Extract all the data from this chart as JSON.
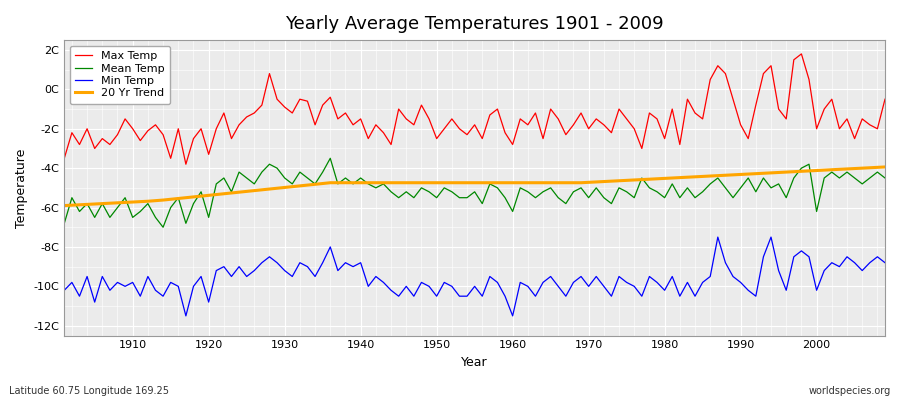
{
  "title": "Yearly Average Temperatures 1901 - 2009",
  "xlabel": "Year",
  "ylabel": "Temperature",
  "footnote_left": "Latitude 60.75 Longitude 169.25",
  "footnote_right": "worldspecies.org",
  "year_start": 1901,
  "year_end": 2009,
  "ylim": [
    -12.5,
    2.5
  ],
  "yticks": [
    -12,
    -10,
    -8,
    -6,
    -4,
    -2,
    0,
    2
  ],
  "ytick_labels": [
    "-12C",
    "-10C",
    "-8C",
    "-6C",
    "-4C",
    "-2C",
    "0C",
    "2C"
  ],
  "bg_color": "#ffffff",
  "plot_bg_color": "#ebebeb",
  "grid_color": "#ffffff",
  "line_colors": {
    "max": "#ff0000",
    "mean": "#008800",
    "min": "#0000ff",
    "trend": "#ffa500"
  },
  "legend_labels": [
    "Max Temp",
    "Mean Temp",
    "Min Temp",
    "20 Yr Trend"
  ],
  "max_temp": [
    -3.5,
    -2.2,
    -2.8,
    -2.0,
    -3.0,
    -2.5,
    -2.8,
    -2.3,
    -1.5,
    -2.0,
    -2.6,
    -2.1,
    -1.8,
    -2.3,
    -3.5,
    -2.0,
    -3.8,
    -2.5,
    -2.0,
    -3.3,
    -2.0,
    -1.2,
    -2.5,
    -1.8,
    -1.4,
    -1.2,
    -0.8,
    0.8,
    -0.5,
    -0.9,
    -1.2,
    -0.5,
    -0.6,
    -1.8,
    -0.8,
    -0.4,
    -1.5,
    -1.2,
    -1.8,
    -1.5,
    -2.5,
    -1.8,
    -2.2,
    -2.8,
    -1.0,
    -1.5,
    -1.8,
    -0.8,
    -1.5,
    -2.5,
    -2.0,
    -1.5,
    -2.0,
    -2.3,
    -1.8,
    -2.5,
    -1.3,
    -1.0,
    -2.2,
    -2.8,
    -1.5,
    -1.8,
    -1.2,
    -2.5,
    -1.0,
    -1.5,
    -2.3,
    -1.8,
    -1.2,
    -2.0,
    -1.5,
    -1.8,
    -2.2,
    -1.0,
    -1.5,
    -2.0,
    -3.0,
    -1.2,
    -1.5,
    -2.5,
    -1.0,
    -2.8,
    -0.5,
    -1.2,
    -1.5,
    0.5,
    1.2,
    0.8,
    -0.5,
    -1.8,
    -2.5,
    -0.8,
    0.8,
    1.2,
    -1.0,
    -1.5,
    1.5,
    1.8,
    0.5,
    -2.0,
    -1.0,
    -0.5,
    -2.0,
    -1.5,
    -2.5,
    -1.5,
    -1.8,
    -2.0,
    -0.5
  ],
  "mean_temp": [
    -6.8,
    -5.5,
    -6.2,
    -5.8,
    -6.5,
    -5.8,
    -6.5,
    -6.0,
    -5.5,
    -6.5,
    -6.2,
    -5.8,
    -6.5,
    -7.0,
    -6.0,
    -5.5,
    -6.8,
    -5.8,
    -5.2,
    -6.5,
    -4.8,
    -4.5,
    -5.2,
    -4.2,
    -4.5,
    -4.8,
    -4.2,
    -3.8,
    -4.0,
    -4.5,
    -4.8,
    -4.2,
    -4.5,
    -4.8,
    -4.2,
    -3.5,
    -4.8,
    -4.5,
    -4.8,
    -4.5,
    -4.8,
    -5.0,
    -4.8,
    -5.2,
    -5.5,
    -5.2,
    -5.5,
    -5.0,
    -5.2,
    -5.5,
    -5.0,
    -5.2,
    -5.5,
    -5.5,
    -5.2,
    -5.8,
    -4.8,
    -5.0,
    -5.5,
    -6.2,
    -5.0,
    -5.2,
    -5.5,
    -5.2,
    -5.0,
    -5.5,
    -5.8,
    -5.2,
    -5.0,
    -5.5,
    -5.0,
    -5.5,
    -5.8,
    -5.0,
    -5.2,
    -5.5,
    -4.5,
    -5.0,
    -5.2,
    -5.5,
    -4.8,
    -5.5,
    -5.0,
    -5.5,
    -5.2,
    -4.8,
    -4.5,
    -5.0,
    -5.5,
    -5.0,
    -4.5,
    -5.2,
    -4.5,
    -5.0,
    -4.8,
    -5.5,
    -4.5,
    -4.0,
    -3.8,
    -6.2,
    -4.5,
    -4.2,
    -4.5,
    -4.2,
    -4.5,
    -4.8,
    -4.5,
    -4.2,
    -4.5
  ],
  "min_temp": [
    -10.2,
    -9.8,
    -10.5,
    -9.5,
    -10.8,
    -9.5,
    -10.2,
    -9.8,
    -10.0,
    -9.8,
    -10.5,
    -9.5,
    -10.2,
    -10.5,
    -9.8,
    -10.0,
    -11.5,
    -10.0,
    -9.5,
    -10.8,
    -9.2,
    -9.0,
    -9.5,
    -9.0,
    -9.5,
    -9.2,
    -8.8,
    -8.5,
    -8.8,
    -9.2,
    -9.5,
    -8.8,
    -9.0,
    -9.5,
    -8.8,
    -8.0,
    -9.2,
    -8.8,
    -9.0,
    -8.8,
    -10.0,
    -9.5,
    -9.8,
    -10.2,
    -10.5,
    -10.0,
    -10.5,
    -9.8,
    -10.0,
    -10.5,
    -9.8,
    -10.0,
    -10.5,
    -10.5,
    -10.0,
    -10.5,
    -9.5,
    -9.8,
    -10.5,
    -11.5,
    -9.8,
    -10.0,
    -10.5,
    -9.8,
    -9.5,
    -10.0,
    -10.5,
    -9.8,
    -9.5,
    -10.0,
    -9.5,
    -10.0,
    -10.5,
    -9.5,
    -9.8,
    -10.0,
    -10.5,
    -9.5,
    -9.8,
    -10.2,
    -9.5,
    -10.5,
    -9.8,
    -10.5,
    -9.8,
    -9.5,
    -7.5,
    -8.8,
    -9.5,
    -9.8,
    -10.2,
    -10.5,
    -8.5,
    -7.5,
    -9.2,
    -10.2,
    -8.5,
    -8.2,
    -8.5,
    -10.2,
    -9.2,
    -8.8,
    -9.0,
    -8.5,
    -8.8,
    -9.2,
    -8.8,
    -8.5,
    -8.8
  ],
  "trend": [
    -5.9,
    -5.88,
    -5.86,
    -5.84,
    -5.82,
    -5.8,
    -5.78,
    -5.76,
    -5.74,
    -5.72,
    -5.7,
    -5.68,
    -5.65,
    -5.62,
    -5.58,
    -5.54,
    -5.5,
    -5.46,
    -5.42,
    -5.38,
    -5.34,
    -5.3,
    -5.26,
    -5.22,
    -5.18,
    -5.14,
    -5.1,
    -5.06,
    -5.02,
    -4.98,
    -4.94,
    -4.9,
    -4.86,
    -4.82,
    -4.78,
    -4.74,
    -4.74,
    -4.74,
    -4.74,
    -4.74,
    -4.74,
    -4.74,
    -4.74,
    -4.74,
    -4.74,
    -4.74,
    -4.74,
    -4.74,
    -4.74,
    -4.74,
    -4.74,
    -4.74,
    -4.74,
    -4.74,
    -4.74,
    -4.74,
    -4.74,
    -4.74,
    -4.74,
    -4.74,
    -4.74,
    -4.74,
    -4.74,
    -4.74,
    -4.74,
    -4.74,
    -4.74,
    -4.74,
    -4.74,
    -4.72,
    -4.7,
    -4.68,
    -4.66,
    -4.64,
    -4.62,
    -4.6,
    -4.58,
    -4.56,
    -4.54,
    -4.52,
    -4.5,
    -4.48,
    -4.46,
    -4.44,
    -4.42,
    -4.4,
    -4.38,
    -4.36,
    -4.34,
    -4.32,
    -4.3,
    -4.28,
    -4.26,
    -4.24,
    -4.22,
    -4.2,
    -4.18,
    -4.16,
    -4.14,
    -4.12,
    -4.1,
    -4.08,
    -4.06,
    -4.04,
    -4.02,
    -4.0,
    -3.98,
    -3.96,
    -3.94
  ]
}
